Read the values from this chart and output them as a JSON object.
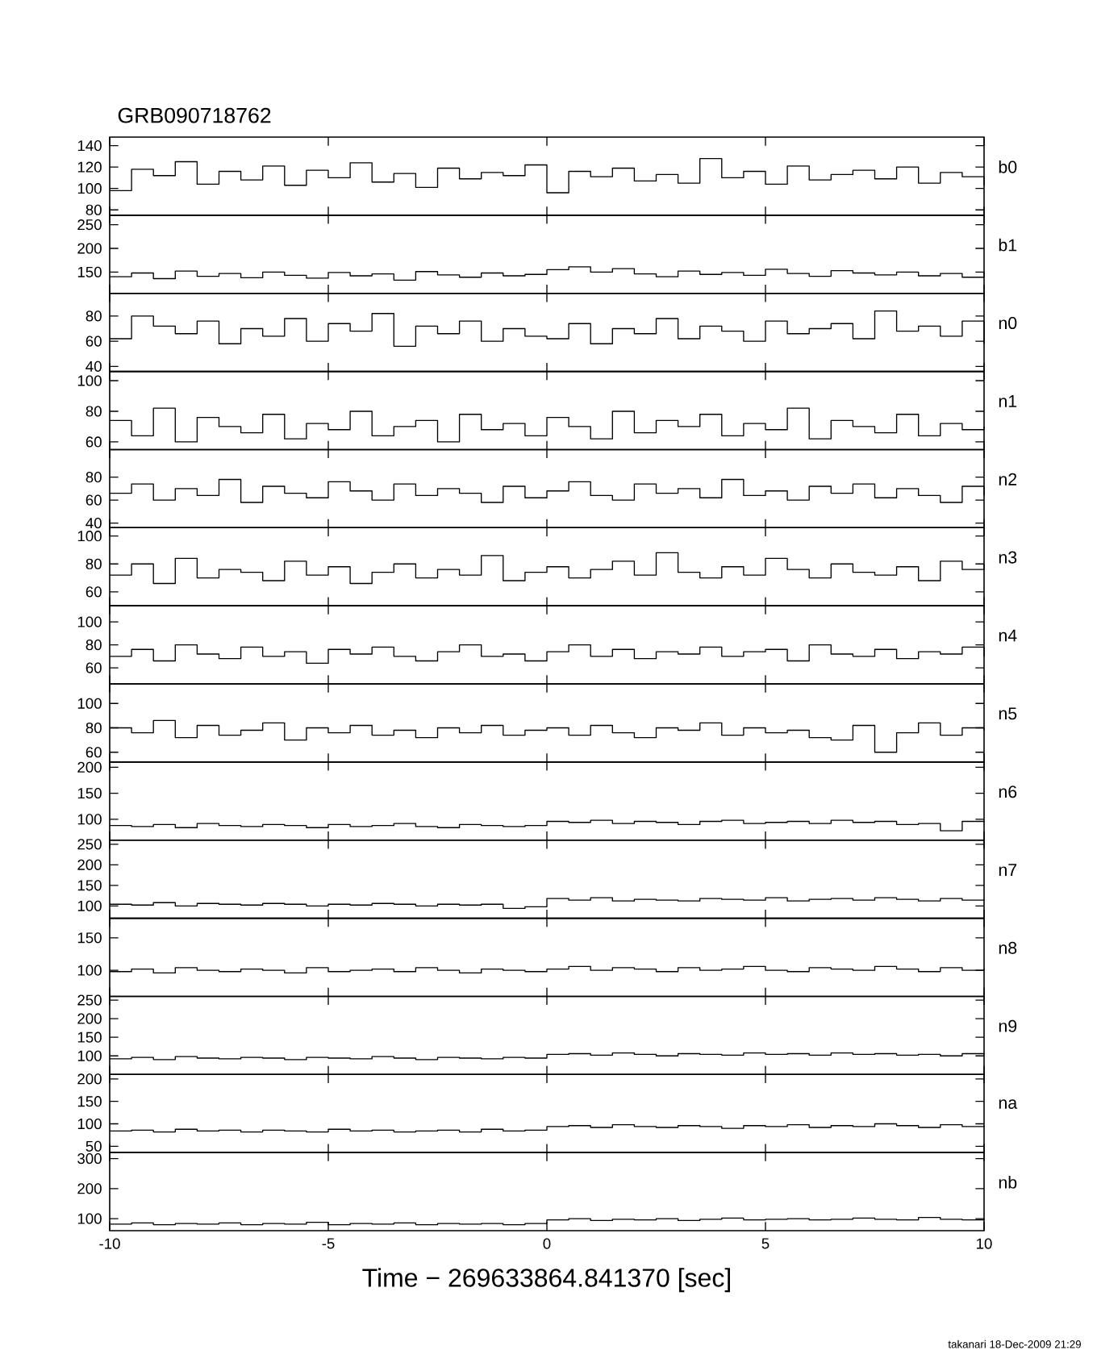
{
  "chart_data": [
    {
      "type": "step",
      "title": "GRB090718762",
      "xlim": [
        -10,
        10
      ],
      "ylim": [
        75,
        148
      ],
      "xticks": [
        -10,
        -5,
        0,
        5,
        10
      ],
      "yticks": [
        80,
        100,
        120,
        140
      ],
      "tick_labels": "y",
      "x": [
        -10,
        -9.5,
        -9,
        -8.5,
        -8,
        -7.5,
        -7,
        -6.5,
        -6,
        -5.5,
        -5,
        -4.5,
        -4,
        -3.5,
        -3,
        -2.5,
        -2,
        -1.5,
        -1,
        -0.5,
        0,
        0.5,
        1,
        1.5,
        2,
        2.5,
        3,
        3.5,
        4,
        4.5,
        5,
        5.5,
        6,
        6.5,
        7,
        7.5,
        8,
        8.5,
        9,
        9.5,
        10
      ],
      "series": [
        {
          "name": "b0",
          "color": "#000000",
          "values": [
            98,
            118,
            112,
            125,
            104,
            116,
            108,
            121,
            103,
            117,
            110,
            124,
            106,
            114,
            101,
            119,
            109,
            115,
            112,
            122,
            96,
            116,
            111,
            119,
            107,
            113,
            105,
            128,
            110,
            116,
            104,
            121,
            108,
            113,
            117,
            109,
            120,
            105,
            115,
            111,
            103
          ]
        }
      ]
    },
    {
      "type": "step",
      "xlim": [
        -10,
        10
      ],
      "ylim": [
        105,
        270
      ],
      "xticks": [
        -10,
        -5,
        0,
        5,
        10
      ],
      "yticks": [
        150,
        200,
        250
      ],
      "tick_labels": "y",
      "x": [
        -10,
        -9.5,
        -9,
        -8.5,
        -8,
        -7.5,
        -7,
        -6.5,
        -6,
        -5.5,
        -5,
        -4.5,
        -4,
        -3.5,
        -3,
        -2.5,
        -2,
        -1.5,
        -1,
        -0.5,
        0,
        0.5,
        1,
        1.5,
        2,
        2.5,
        3,
        3.5,
        4,
        4.5,
        5,
        5.5,
        6,
        6.5,
        7,
        7.5,
        8,
        8.5,
        9,
        9.5,
        10
      ],
      "series": [
        {
          "name": "b1",
          "color": "#000000",
          "values": [
            140,
            148,
            136,
            152,
            141,
            147,
            138,
            150,
            143,
            137,
            149,
            142,
            146,
            133,
            151,
            144,
            139,
            148,
            142,
            145,
            155,
            161,
            150,
            157,
            146,
            140,
            152,
            145,
            149,
            143,
            156,
            147,
            141,
            153,
            148,
            144,
            150,
            142,
            147,
            139,
            151
          ]
        }
      ]
    },
    {
      "type": "step",
      "xlim": [
        -10,
        10
      ],
      "ylim": [
        36,
        98
      ],
      "xticks": [
        -10,
        -5,
        0,
        5,
        10
      ],
      "yticks": [
        40,
        60,
        80
      ],
      "tick_labels": "y",
      "x": [
        -10,
        -9.5,
        -9,
        -8.5,
        -8,
        -7.5,
        -7,
        -6.5,
        -6,
        -5.5,
        -5,
        -4.5,
        -4,
        -3.5,
        -3,
        -2.5,
        -2,
        -1.5,
        -1,
        -0.5,
        0,
        0.5,
        1,
        1.5,
        2,
        2.5,
        3,
        3.5,
        4,
        4.5,
        5,
        5.5,
        6,
        6.5,
        7,
        7.5,
        8,
        8.5,
        9,
        9.5,
        10
      ],
      "series": [
        {
          "name": "n0",
          "color": "#000000",
          "values": [
            62,
            80,
            72,
            66,
            76,
            58,
            70,
            64,
            78,
            60,
            74,
            68,
            82,
            56,
            72,
            66,
            76,
            60,
            70,
            64,
            62,
            74,
            58,
            70,
            66,
            78,
            62,
            72,
            68,
            60,
            76,
            66,
            70,
            74,
            62,
            84,
            68,
            72,
            64,
            76,
            58
          ]
        }
      ]
    },
    {
      "type": "step",
      "xlim": [
        -10,
        10
      ],
      "ylim": [
        55,
        106
      ],
      "xticks": [
        -10,
        -5,
        0,
        5,
        10
      ],
      "yticks": [
        60,
        80,
        100
      ],
      "tick_labels": "y",
      "x": [
        -10,
        -9.5,
        -9,
        -8.5,
        -8,
        -7.5,
        -7,
        -6.5,
        -6,
        -5.5,
        -5,
        -4.5,
        -4,
        -3.5,
        -3,
        -2.5,
        -2,
        -1.5,
        -1,
        -0.5,
        0,
        0.5,
        1,
        1.5,
        2,
        2.5,
        3,
        3.5,
        4,
        4.5,
        5,
        5.5,
        6,
        6.5,
        7,
        7.5,
        8,
        8.5,
        9,
        9.5,
        10
      ],
      "series": [
        {
          "name": "n1",
          "color": "#000000",
          "values": [
            74,
            64,
            82,
            60,
            76,
            70,
            66,
            78,
            62,
            72,
            68,
            80,
            64,
            70,
            74,
            60,
            78,
            68,
            72,
            64,
            76,
            70,
            62,
            80,
            66,
            74,
            70,
            78,
            64,
            72,
            68,
            82,
            62,
            74,
            70,
            66,
            78,
            64,
            72,
            68,
            70
          ]
        }
      ]
    },
    {
      "type": "step",
      "xlim": [
        -10,
        10
      ],
      "ylim": [
        36,
        104
      ],
      "xticks": [
        -10,
        -5,
        0,
        5,
        10
      ],
      "yticks": [
        40,
        60,
        80
      ],
      "tick_labels": "y",
      "x": [
        -10,
        -9.5,
        -9,
        -8.5,
        -8,
        -7.5,
        -7,
        -6.5,
        -6,
        -5.5,
        -5,
        -4.5,
        -4,
        -3.5,
        -3,
        -2.5,
        -2,
        -1.5,
        -1,
        -0.5,
        0,
        0.5,
        1,
        1.5,
        2,
        2.5,
        3,
        3.5,
        4,
        4.5,
        5,
        5.5,
        6,
        6.5,
        7,
        7.5,
        8,
        8.5,
        9,
        9.5,
        10
      ],
      "series": [
        {
          "name": "n2",
          "color": "#000000",
          "values": [
            66,
            74,
            60,
            70,
            64,
            78,
            58,
            72,
            66,
            62,
            76,
            68,
            60,
            74,
            64,
            70,
            66,
            58,
            72,
            62,
            68,
            76,
            64,
            60,
            74,
            66,
            70,
            62,
            78,
            64,
            68,
            60,
            72,
            66,
            74,
            62,
            70,
            64,
            58,
            72,
            64
          ]
        }
      ]
    },
    {
      "type": "step",
      "xlim": [
        -10,
        10
      ],
      "ylim": [
        50,
        106
      ],
      "xticks": [
        -10,
        -5,
        0,
        5,
        10
      ],
      "yticks": [
        60,
        80,
        100
      ],
      "tick_labels": "y",
      "x": [
        -10,
        -9.5,
        -9,
        -8.5,
        -8,
        -7.5,
        -7,
        -6.5,
        -6,
        -5.5,
        -5,
        -4.5,
        -4,
        -3.5,
        -3,
        -2.5,
        -2,
        -1.5,
        -1,
        -0.5,
        0,
        0.5,
        1,
        1.5,
        2,
        2.5,
        3,
        3.5,
        4,
        4.5,
        5,
        5.5,
        6,
        6.5,
        7,
        7.5,
        8,
        8.5,
        9,
        9.5,
        10
      ],
      "series": [
        {
          "name": "n3",
          "color": "#000000",
          "values": [
            72,
            80,
            66,
            84,
            70,
            76,
            74,
            68,
            82,
            72,
            78,
            66,
            74,
            80,
            70,
            76,
            72,
            86,
            68,
            74,
            78,
            70,
            76,
            82,
            72,
            88,
            74,
            70,
            78,
            72,
            84,
            76,
            70,
            80,
            74,
            72,
            78,
            68,
            82,
            76,
            80
          ]
        }
      ]
    },
    {
      "type": "step",
      "xlim": [
        -10,
        10
      ],
      "ylim": [
        46,
        114
      ],
      "xticks": [
        -10,
        -5,
        0,
        5,
        10
      ],
      "yticks": [
        60,
        80,
        100
      ],
      "tick_labels": "y",
      "x": [
        -10,
        -9.5,
        -9,
        -8.5,
        -8,
        -7.5,
        -7,
        -6.5,
        -6,
        -5.5,
        -5,
        -4.5,
        -4,
        -3.5,
        -3,
        -2.5,
        -2,
        -1.5,
        -1,
        -0.5,
        0,
        0.5,
        1,
        1.5,
        2,
        2.5,
        3,
        3.5,
        4,
        4.5,
        5,
        5.5,
        6,
        6.5,
        7,
        7.5,
        8,
        8.5,
        9,
        9.5,
        10
      ],
      "series": [
        {
          "name": "n4",
          "color": "#000000",
          "values": [
            70,
            76,
            66,
            80,
            72,
            68,
            78,
            70,
            74,
            64,
            76,
            72,
            78,
            70,
            66,
            74,
            80,
            70,
            72,
            66,
            74,
            80,
            70,
            76,
            68,
            74,
            72,
            78,
            70,
            74,
            76,
            66,
            80,
            72,
            70,
            76,
            68,
            74,
            72,
            78,
            70
          ]
        }
      ]
    },
    {
      "type": "step",
      "xlim": [
        -10,
        10
      ],
      "ylim": [
        52,
        116
      ],
      "xticks": [
        -10,
        -5,
        0,
        5,
        10
      ],
      "yticks": [
        60,
        80,
        100
      ],
      "tick_labels": "y",
      "x": [
        -10,
        -9.5,
        -9,
        -8.5,
        -8,
        -7.5,
        -7,
        -6.5,
        -6,
        -5.5,
        -5,
        -4.5,
        -4,
        -3.5,
        -3,
        -2.5,
        -2,
        -1.5,
        -1,
        -0.5,
        0,
        0.5,
        1,
        1.5,
        2,
        2.5,
        3,
        3.5,
        4,
        4.5,
        5,
        5.5,
        6,
        6.5,
        7,
        7.5,
        8,
        8.5,
        9,
        9.5,
        10
      ],
      "series": [
        {
          "name": "n5",
          "color": "#000000",
          "values": [
            80,
            76,
            86,
            72,
            82,
            74,
            78,
            84,
            70,
            80,
            76,
            82,
            74,
            78,
            72,
            80,
            76,
            82,
            74,
            78,
            80,
            74,
            82,
            76,
            72,
            80,
            78,
            84,
            74,
            80,
            76,
            78,
            72,
            70,
            82,
            60,
            76,
            84,
            74,
            80,
            78
          ]
        }
      ]
    },
    {
      "type": "step",
      "xlim": [
        -10,
        10
      ],
      "ylim": [
        60,
        210
      ],
      "xticks": [
        -10,
        -5,
        0,
        5,
        10
      ],
      "yticks": [
        100,
        150,
        200
      ],
      "tick_labels": "y",
      "x": [
        -10,
        -9.5,
        -9,
        -8.5,
        -8,
        -7.5,
        -7,
        -6.5,
        -6,
        -5.5,
        -5,
        -4.5,
        -4,
        -3.5,
        -3,
        -2.5,
        -2,
        -1.5,
        -1,
        -0.5,
        0,
        0.5,
        1,
        1.5,
        2,
        2.5,
        3,
        3.5,
        4,
        4.5,
        5,
        5.5,
        6,
        6.5,
        7,
        7.5,
        8,
        8.5,
        9,
        9.5,
        10
      ],
      "series": [
        {
          "name": "n6",
          "color": "#000000",
          "values": [
            88,
            86,
            90,
            84,
            92,
            88,
            86,
            90,
            88,
            84,
            90,
            86,
            88,
            92,
            86,
            84,
            90,
            88,
            86,
            88,
            96,
            94,
            98,
            92,
            96,
            94,
            90,
            96,
            98,
            92,
            94,
            96,
            92,
            98,
            94,
            96,
            90,
            92,
            78,
            96,
            94
          ]
        }
      ]
    },
    {
      "type": "step",
      "xlim": [
        -10,
        10
      ],
      "ylim": [
        70,
        260
      ],
      "xticks": [
        -10,
        -5,
        0,
        5,
        10
      ],
      "yticks": [
        100,
        150,
        200,
        250
      ],
      "tick_labels": "y",
      "x": [
        -10,
        -9.5,
        -9,
        -8.5,
        -8,
        -7.5,
        -7,
        -6.5,
        -6,
        -5.5,
        -5,
        -4.5,
        -4,
        -3.5,
        -3,
        -2.5,
        -2,
        -1.5,
        -1,
        -0.5,
        0,
        0.5,
        1,
        1.5,
        2,
        2.5,
        3,
        3.5,
        4,
        4.5,
        5,
        5.5,
        6,
        6.5,
        7,
        7.5,
        8,
        8.5,
        9,
        9.5,
        10
      ],
      "series": [
        {
          "name": "n7",
          "color": "#000000",
          "values": [
            104,
            102,
            108,
            100,
            106,
            104,
            102,
            106,
            104,
            100,
            104,
            102,
            106,
            104,
            100,
            104,
            102,
            104,
            94,
            98,
            118,
            114,
            120,
            112,
            116,
            114,
            112,
            118,
            116,
            114,
            120,
            112,
            116,
            118,
            114,
            120,
            116,
            112,
            118,
            114,
            116
          ]
        }
      ]
    },
    {
      "type": "step",
      "xlim": [
        -10,
        10
      ],
      "ylim": [
        60,
        180
      ],
      "xticks": [
        -10,
        -5,
        0,
        5,
        10
      ],
      "yticks": [
        100,
        150
      ],
      "tick_labels": "y",
      "x": [
        -10,
        -9.5,
        -9,
        -8.5,
        -8,
        -7.5,
        -7,
        -6.5,
        -6,
        -5.5,
        -5,
        -4.5,
        -4,
        -3.5,
        -3,
        -2.5,
        -2,
        -1.5,
        -1,
        -0.5,
        0,
        0.5,
        1,
        1.5,
        2,
        2.5,
        3,
        3.5,
        4,
        4.5,
        5,
        5.5,
        6,
        6.5,
        7,
        7.5,
        8,
        8.5,
        9,
        9.5,
        10
      ],
      "series": [
        {
          "name": "n8",
          "color": "#000000",
          "values": [
            98,
            102,
            96,
            104,
            100,
            98,
            102,
            100,
            96,
            104,
            98,
            100,
            102,
            98,
            104,
            100,
            96,
            102,
            100,
            98,
            102,
            106,
            100,
            104,
            102,
            98,
            104,
            100,
            102,
            106,
            100,
            98,
            104,
            102,
            100,
            106,
            102,
            98,
            104,
            100,
            102
          ]
        }
      ]
    },
    {
      "type": "step",
      "xlim": [
        -10,
        10
      ],
      "ylim": [
        50,
        260
      ],
      "xticks": [
        -10,
        -5,
        0,
        5,
        10
      ],
      "yticks": [
        100,
        150,
        200,
        250
      ],
      "tick_labels": "y",
      "x": [
        -10,
        -9.5,
        -9,
        -8.5,
        -8,
        -7.5,
        -7,
        -6.5,
        -6,
        -5.5,
        -5,
        -4.5,
        -4,
        -3.5,
        -3,
        -2.5,
        -2,
        -1.5,
        -1,
        -0.5,
        0,
        0.5,
        1,
        1.5,
        2,
        2.5,
        3,
        3.5,
        4,
        4.5,
        5,
        5.5,
        6,
        6.5,
        7,
        7.5,
        8,
        8.5,
        9,
        9.5,
        10
      ],
      "series": [
        {
          "name": "n9",
          "color": "#000000",
          "values": [
            92,
            96,
            90,
            98,
            94,
            92,
            96,
            94,
            90,
            96,
            94,
            92,
            98,
            94,
            90,
            96,
            94,
            92,
            96,
            94,
            104,
            106,
            102,
            108,
            104,
            100,
            106,
            104,
            102,
            108,
            104,
            106,
            102,
            108,
            104,
            106,
            102,
            104,
            100,
            106,
            104
          ]
        }
      ]
    },
    {
      "type": "step",
      "xlim": [
        -10,
        10
      ],
      "ylim": [
        36,
        210
      ],
      "xticks": [
        -10,
        -5,
        0,
        5,
        10
      ],
      "yticks": [
        50,
        100,
        150,
        200
      ],
      "tick_labels": "y",
      "x": [
        -10,
        -9.5,
        -9,
        -8.5,
        -8,
        -7.5,
        -7,
        -6.5,
        -6,
        -5.5,
        -5,
        -4.5,
        -4,
        -3.5,
        -3,
        -2.5,
        -2,
        -1.5,
        -1,
        -0.5,
        0,
        0.5,
        1,
        1.5,
        2,
        2.5,
        3,
        3.5,
        4,
        4.5,
        5,
        5.5,
        6,
        6.5,
        7,
        7.5,
        8,
        8.5,
        9,
        9.5,
        10
      ],
      "series": [
        {
          "name": "na",
          "color": "#000000",
          "values": [
            84,
            86,
            82,
            88,
            84,
            86,
            82,
            86,
            84,
            82,
            88,
            84,
            86,
            82,
            84,
            86,
            82,
            88,
            84,
            86,
            94,
            96,
            92,
            98,
            94,
            92,
            96,
            94,
            90,
            96,
            94,
            98,
            92,
            96,
            94,
            100,
            96,
            92,
            98,
            94,
            96
          ]
        }
      ]
    },
    {
      "type": "step",
      "xlabel": "Time − 269633864.841370 [sec]",
      "annotations": [
        "takanari 18-Dec-2009 21:29"
      ],
      "xlim": [
        -10,
        10
      ],
      "ylim": [
        60,
        320
      ],
      "xticks": [
        -10,
        -5,
        0,
        5,
        10
      ],
      "yticks": [
        100,
        200,
        300
      ],
      "x": [
        -10,
        -9.5,
        -9,
        -8.5,
        -8,
        -7.5,
        -7,
        -6.5,
        -6,
        -5.5,
        -5,
        -4.5,
        -4,
        -3.5,
        -3,
        -2.5,
        -2,
        -1.5,
        -1,
        -0.5,
        0,
        0.5,
        1,
        1.5,
        2,
        2.5,
        3,
        3.5,
        4,
        4.5,
        5,
        5.5,
        6,
        6.5,
        7,
        7.5,
        8,
        8.5,
        9,
        9.5,
        10
      ],
      "series": [
        {
          "name": "nb",
          "color": "#000000",
          "values": [
            82,
            86,
            80,
            84,
            82,
            86,
            80,
            84,
            82,
            88,
            80,
            84,
            82,
            86,
            80,
            84,
            82,
            84,
            80,
            84,
            96,
            100,
            94,
            98,
            96,
            100,
            94,
            98,
            102,
            96,
            98,
            100,
            96,
            98,
            102,
            98,
            96,
            104,
            98,
            96,
            100
          ]
        }
      ]
    }
  ]
}
